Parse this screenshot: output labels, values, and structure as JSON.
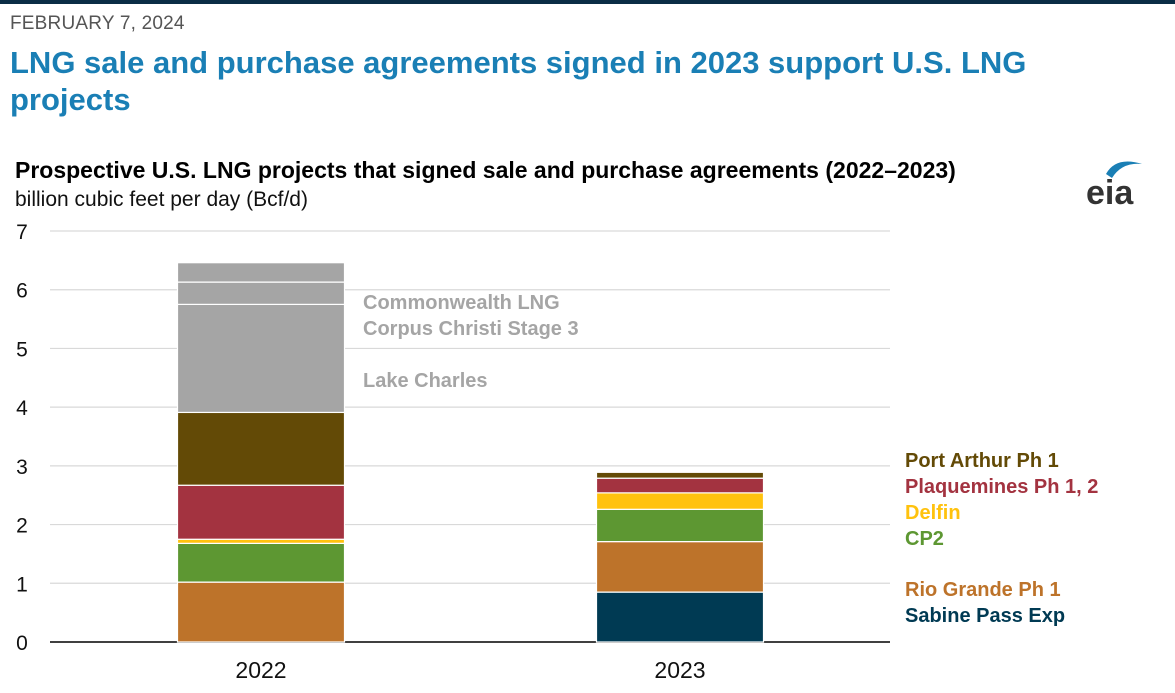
{
  "date": "FEBRUARY 7, 2024",
  "headline": "LNG sale and purchase agreements signed in 2023 support U.S. LNG projects",
  "logo": {
    "text": "eia",
    "color": "#1a7fb5"
  },
  "chart_data": {
    "type": "bar",
    "stacked": true,
    "title": "Prospective U.S. LNG projects that signed sale and purchase agreements (2022–2023)",
    "ylabel": "billion cubic feet per day (Bcf/d)",
    "ylim": [
      0,
      7
    ],
    "yticks": [
      0,
      1,
      2,
      3,
      4,
      5,
      6,
      7
    ],
    "grid": true,
    "categories": [
      "2022",
      "2023"
    ],
    "series": [
      {
        "name": "Sabine Pass Exp",
        "color": "#003a53",
        "values": [
          0,
          0.85
        ]
      },
      {
        "name": "Rio Grande Ph 1",
        "color": "#bd732a",
        "values": [
          1.02,
          0.86
        ]
      },
      {
        "name": "CP2",
        "color": "#5d9732",
        "values": [
          0.66,
          0.55
        ]
      },
      {
        "name": "Delfin",
        "color": "#ffc20e",
        "values": [
          0.07,
          0.28
        ]
      },
      {
        "name": "Plaquemines Ph 1, 2",
        "color": "#a33340",
        "values": [
          0.92,
          0.25
        ]
      },
      {
        "name": "Port Arthur Ph 1",
        "color": "#634a06",
        "values": [
          1.24,
          0.1
        ]
      },
      {
        "name": "Lake Charles",
        "color": "#a5a5a5",
        "values": [
          1.84,
          0
        ]
      },
      {
        "name": "Corpus Christi Stage 3",
        "color": "#a5a5a5",
        "values": [
          0.38,
          0
        ]
      },
      {
        "name": "Commonwealth LNG",
        "color": "#a5a5a5",
        "values": [
          0.33,
          0
        ]
      }
    ],
    "annotations_2022": [
      "Commonwealth LNG",
      "Corpus Christi Stage 3",
      "Lake Charles"
    ],
    "annotations_2022_color": "#a5a5a5",
    "annotations_2023": [
      {
        "text": "Port Arthur Ph 1",
        "color": "#634a06"
      },
      {
        "text": "Plaquemines Ph 1, 2",
        "color": "#a33340"
      },
      {
        "text": "Delfin",
        "color": "#ffc20e"
      },
      {
        "text": "CP2",
        "color": "#5d9732"
      },
      {
        "text": "Rio Grande Ph 1",
        "color": "#bd732a"
      },
      {
        "text": "Sabine Pass Exp",
        "color": "#003a53"
      }
    ]
  }
}
